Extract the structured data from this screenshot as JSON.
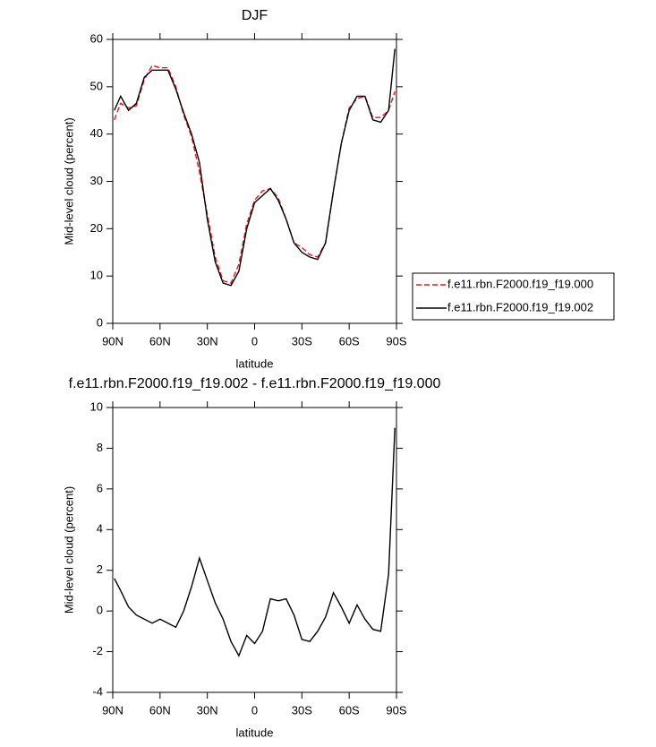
{
  "chart_data": [
    {
      "type": "line",
      "title": "DJF",
      "x_label": "latitude",
      "y_label": "Mid-level cloud (percent)",
      "x": [
        89,
        85,
        80,
        75,
        70,
        65,
        60,
        55,
        50,
        45,
        40,
        35,
        30,
        25,
        20,
        15,
        10,
        5,
        0,
        -5,
        -10,
        -15,
        -20,
        -25,
        -30,
        -35,
        -40,
        -45,
        -50,
        -55,
        -60,
        -65,
        -70,
        -75,
        -80,
        -85,
        -89
      ],
      "series": [
        {
          "name": "f.e11.rbn.F2000.f19_f19.000",
          "color": "#e8161b",
          "dashed": true,
          "values": [
            43,
            46.5,
            45.5,
            46,
            51.5,
            54.5,
            54,
            54,
            50,
            44,
            39.5,
            32,
            23,
            14,
            9,
            8.5,
            12.5,
            21,
            26,
            28,
            28.5,
            26.5,
            22,
            17,
            16,
            14.5,
            14,
            17,
            28,
            38,
            45.5,
            47.5,
            48,
            43.5,
            43.5,
            45,
            49
          ]
        },
        {
          "name": "f.e11.rbn.F2000.f19_f19.002",
          "color": "#000000",
          "dashed": false,
          "values": [
            45,
            48,
            45,
            46.5,
            52,
            53.5,
            53.5,
            53.5,
            49.5,
            44.5,
            40,
            34,
            22,
            13,
            8.5,
            8,
            11,
            20,
            25.5,
            27,
            28.5,
            26,
            22,
            17,
            15,
            14,
            13.5,
            17,
            28,
            38,
            45,
            48,
            48,
            43,
            42.5,
            45,
            58
          ]
        }
      ],
      "xlim": [
        90,
        -90
      ],
      "xticks": [
        {
          "value": 90,
          "label": "90N"
        },
        {
          "value": 60,
          "label": "60N"
        },
        {
          "value": 30,
          "label": "30N"
        },
        0,
        {
          "value": -30,
          "label": "30S"
        },
        {
          "value": -60,
          "label": "60S"
        },
        {
          "value": -90,
          "label": "90S"
        }
      ],
      "ylim": [
        0,
        60
      ],
      "yticks": [
        0,
        10,
        20,
        30,
        40,
        50,
        60
      ],
      "legend": "right"
    },
    {
      "type": "line",
      "title": "f.e11.rbn.F2000.f19_f19.002 - f.e11.rbn.F2000.f19_f19.000",
      "x_label": "latitude",
      "y_label": "Mid-level cloud (percent)",
      "x": [
        89,
        85,
        80,
        75,
        70,
        65,
        60,
        55,
        50,
        45,
        40,
        35,
        30,
        25,
        20,
        15,
        10,
        5,
        0,
        -5,
        -10,
        -15,
        -20,
        -25,
        -30,
        -35,
        -40,
        -45,
        -50,
        -55,
        -60,
        -65,
        -70,
        -75,
        -80,
        -85,
        -89
      ],
      "series": [
        {
          "color": "#000000",
          "dashed": false,
          "values": [
            1.6,
            1.0,
            0.2,
            -0.2,
            -0.4,
            -0.6,
            -0.4,
            -0.6,
            -0.8,
            0.0,
            1.2,
            2.6,
            1.5,
            0.4,
            -0.4,
            -1.5,
            -2.2,
            -1.2,
            -1.6,
            -1.0,
            0.6,
            0.5,
            0.6,
            -0.2,
            -1.4,
            -1.5,
            -1.0,
            -0.3,
            0.9,
            0.2,
            -0.6,
            0.3,
            -0.4,
            -0.9,
            -1.0,
            1.8,
            9.0
          ]
        }
      ],
      "xlim": [
        90,
        -90
      ],
      "xticks": [
        {
          "value": 90,
          "label": "90N"
        },
        {
          "value": 60,
          "label": "60N"
        },
        {
          "value": 30,
          "label": "30N"
        },
        0,
        {
          "value": -30,
          "label": "30S"
        },
        {
          "value": -60,
          "label": "60S"
        },
        {
          "value": -90,
          "label": "90S"
        }
      ],
      "ylim": [
        -4,
        10
      ],
      "yticks": [
        -4,
        -2,
        0,
        2,
        4,
        6,
        8,
        10
      ]
    }
  ]
}
